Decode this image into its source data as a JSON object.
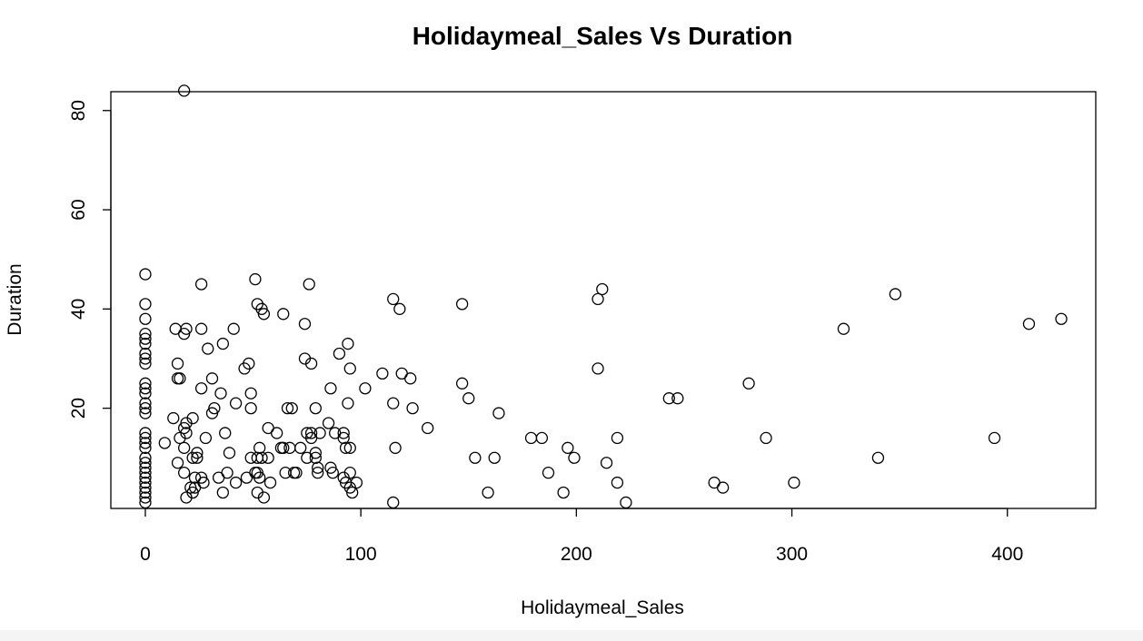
{
  "chart_data": {
    "type": "scatter",
    "title": "Holidaymeal_Sales Vs Duration",
    "xlabel": "Holidaymeal_Sales",
    "ylabel": "Duration",
    "xlim": [
      -16,
      441
    ],
    "ylim": [
      -0.2,
      83.8
    ],
    "xticks": [
      0,
      100,
      200,
      300,
      400
    ],
    "yticks": [
      20,
      40,
      60,
      80
    ],
    "xtick_labels": [
      "0",
      "100",
      "200",
      "300",
      "400"
    ],
    "ytick_labels": [
      "20",
      "40",
      "60",
      "80"
    ],
    "grid": false,
    "legend": "none",
    "points": [
      [
        0,
        47
      ],
      [
        0,
        41
      ],
      [
        0,
        38
      ],
      [
        0,
        35
      ],
      [
        0,
        34
      ],
      [
        0,
        33
      ],
      [
        0,
        31
      ],
      [
        0,
        30
      ],
      [
        0,
        29
      ],
      [
        0,
        25
      ],
      [
        0,
        24
      ],
      [
        0,
        23
      ],
      [
        0,
        21
      ],
      [
        0,
        20
      ],
      [
        0,
        19
      ],
      [
        0,
        15
      ],
      [
        0,
        14
      ],
      [
        0,
        13
      ],
      [
        0,
        12
      ],
      [
        0,
        10
      ],
      [
        0,
        9
      ],
      [
        0,
        8
      ],
      [
        0,
        7
      ],
      [
        0,
        6
      ],
      [
        0,
        5
      ],
      [
        0,
        4
      ],
      [
        0,
        3
      ],
      [
        0,
        2
      ],
      [
        0,
        1
      ],
      [
        18,
        84
      ],
      [
        9,
        13
      ],
      [
        13,
        18
      ],
      [
        14,
        36
      ],
      [
        15,
        29
      ],
      [
        15,
        26
      ],
      [
        16,
        26
      ],
      [
        15,
        9
      ],
      [
        16,
        14
      ],
      [
        18,
        12
      ],
      [
        18,
        7
      ],
      [
        18,
        35
      ],
      [
        18,
        16
      ],
      [
        19,
        17
      ],
      [
        19,
        36
      ],
      [
        19,
        15
      ],
      [
        19,
        2
      ],
      [
        21,
        4
      ],
      [
        22,
        3
      ],
      [
        22,
        10
      ],
      [
        22,
        18
      ],
      [
        23,
        4
      ],
      [
        23,
        6
      ],
      [
        24,
        10
      ],
      [
        24,
        11
      ],
      [
        26,
        45
      ],
      [
        26,
        36
      ],
      [
        26,
        24
      ],
      [
        26,
        6
      ],
      [
        27,
        5
      ],
      [
        28,
        14
      ],
      [
        29,
        32
      ],
      [
        31,
        26
      ],
      [
        31,
        19
      ],
      [
        32,
        20
      ],
      [
        34,
        6
      ],
      [
        35,
        23
      ],
      [
        36,
        33
      ],
      [
        36,
        3
      ],
      [
        37,
        15
      ],
      [
        38,
        7
      ],
      [
        39,
        11
      ],
      [
        41,
        36
      ],
      [
        42,
        5
      ],
      [
        42,
        21
      ],
      [
        46,
        28
      ],
      [
        47,
        6
      ],
      [
        48,
        29
      ],
      [
        49,
        23
      ],
      [
        49,
        20
      ],
      [
        49,
        10
      ],
      [
        51,
        7
      ],
      [
        52,
        7
      ],
      [
        51,
        46
      ],
      [
        52,
        41
      ],
      [
        52,
        10
      ],
      [
        52,
        3
      ],
      [
        53,
        6
      ],
      [
        53,
        12
      ],
      [
        54,
        40
      ],
      [
        54,
        10
      ],
      [
        55,
        39
      ],
      [
        55,
        2
      ],
      [
        57,
        10
      ],
      [
        57,
        16
      ],
      [
        58,
        5
      ],
      [
        61,
        15
      ],
      [
        63,
        12
      ],
      [
        64,
        39
      ],
      [
        64,
        12
      ],
      [
        65,
        7
      ],
      [
        66,
        20
      ],
      [
        67,
        12
      ],
      [
        68,
        20
      ],
      [
        69,
        7
      ],
      [
        70,
        7
      ],
      [
        72,
        12
      ],
      [
        74,
        37
      ],
      [
        74,
        30
      ],
      [
        75,
        15
      ],
      [
        75,
        10
      ],
      [
        76,
        45
      ],
      [
        77,
        15
      ],
      [
        77,
        29
      ],
      [
        77,
        14
      ],
      [
        79,
        10
      ],
      [
        79,
        11
      ],
      [
        79,
        20
      ],
      [
        80,
        8
      ],
      [
        80,
        7
      ],
      [
        81,
        15
      ],
      [
        85,
        17
      ],
      [
        86,
        24
      ],
      [
        86,
        8
      ],
      [
        87,
        7
      ],
      [
        88,
        15
      ],
      [
        90,
        31
      ],
      [
        92,
        15
      ],
      [
        92,
        14
      ],
      [
        92,
        6
      ],
      [
        93,
        12
      ],
      [
        93,
        5
      ],
      [
        94,
        33
      ],
      [
        94,
        21
      ],
      [
        95,
        28
      ],
      [
        95,
        12
      ],
      [
        95,
        4
      ],
      [
        95,
        7
      ],
      [
        96,
        3
      ],
      [
        98,
        5
      ],
      [
        102,
        24
      ],
      [
        110,
        27
      ],
      [
        115,
        42
      ],
      [
        115,
        21
      ],
      [
        115,
        1
      ],
      [
        116,
        12
      ],
      [
        118,
        40
      ],
      [
        119,
        27
      ],
      [
        123,
        26
      ],
      [
        124,
        20
      ],
      [
        131,
        16
      ],
      [
        147,
        41
      ],
      [
        147,
        25
      ],
      [
        150,
        22
      ],
      [
        153,
        10
      ],
      [
        159,
        3
      ],
      [
        162,
        10
      ],
      [
        164,
        19
      ],
      [
        179,
        14
      ],
      [
        184,
        14
      ],
      [
        187,
        7
      ],
      [
        194,
        3
      ],
      [
        196,
        12
      ],
      [
        199,
        10
      ],
      [
        210,
        42
      ],
      [
        210,
        28
      ],
      [
        212,
        44
      ],
      [
        214,
        9
      ],
      [
        219,
        14
      ],
      [
        219,
        5
      ],
      [
        223,
        1
      ],
      [
        243,
        22
      ],
      [
        247,
        22
      ],
      [
        264,
        5
      ],
      [
        268,
        4
      ],
      [
        280,
        25
      ],
      [
        288,
        14
      ],
      [
        301,
        5
      ],
      [
        324,
        36
      ],
      [
        340,
        10
      ],
      [
        348,
        43
      ],
      [
        394,
        14
      ],
      [
        410,
        37
      ],
      [
        425,
        38
      ]
    ]
  }
}
